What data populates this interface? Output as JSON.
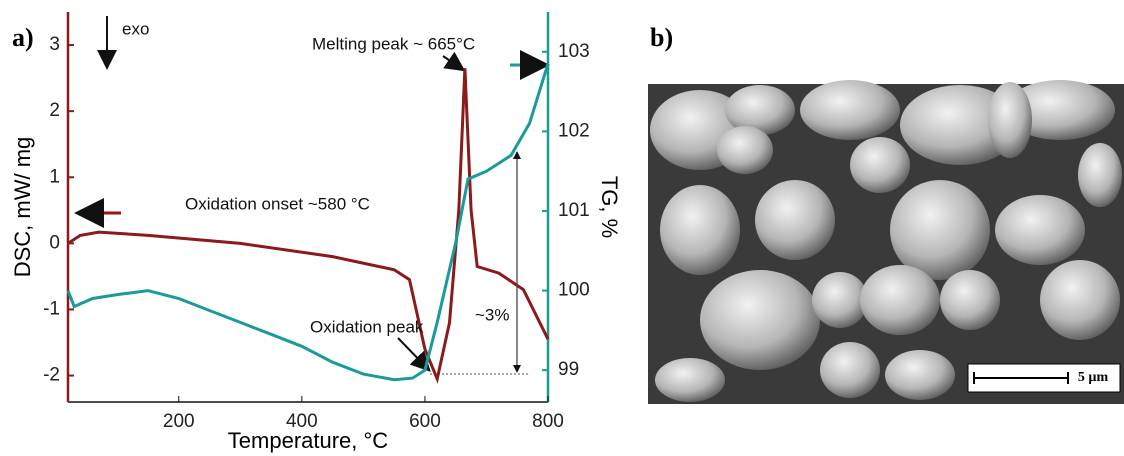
{
  "chart_data": {
    "type": "line",
    "panel_label": "a)",
    "xlabel": "Temperature, °C",
    "ylabel": "DSC, mW/ mg",
    "y2label": "TG, %",
    "xlim": [
      20,
      800
    ],
    "xticks": [
      200,
      400,
      600,
      800
    ],
    "ylim": [
      -2.4,
      3.5
    ],
    "yticks": [
      -2,
      -1,
      0,
      1,
      2,
      3
    ],
    "y2lim": [
      98.6,
      103.5
    ],
    "y2ticks": [
      99,
      100,
      101,
      102,
      103
    ],
    "annotations": [
      "exo",
      "Melting peak ~ 665°C",
      "Oxidation onset ~580 °C",
      "Oxidation peak",
      "~3%"
    ],
    "series": [
      {
        "color": "#8b1a1a",
        "axis": "y",
        "x": [
          20,
          40,
          70,
          150,
          300,
          450,
          550,
          575,
          600,
          620,
          640,
          655,
          665,
          675,
          685,
          720,
          760,
          800
        ],
        "values": [
          0,
          0.12,
          0.17,
          0.12,
          0.0,
          -0.2,
          -0.4,
          -0.55,
          -1.6,
          -2.05,
          -1.2,
          0.5,
          2.65,
          0.5,
          -0.35,
          -0.45,
          -0.7,
          -1.45
        ]
      },
      {
        "color": "#1a9a9a",
        "axis": "y2",
        "x": [
          20,
          30,
          60,
          100,
          150,
          200,
          250,
          300,
          350,
          400,
          450,
          500,
          550,
          580,
          600,
          620,
          650,
          670,
          700,
          740,
          770,
          800
        ],
        "values": [
          100.0,
          99.8,
          99.9,
          99.95,
          100.0,
          99.9,
          99.75,
          99.6,
          99.45,
          99.3,
          99.1,
          98.95,
          98.88,
          98.9,
          99.0,
          99.6,
          100.6,
          101.4,
          101.5,
          101.7,
          102.1,
          102.85
        ]
      }
    ]
  },
  "panel_b": {
    "label": "b)",
    "scale_bar": "5 µm"
  }
}
